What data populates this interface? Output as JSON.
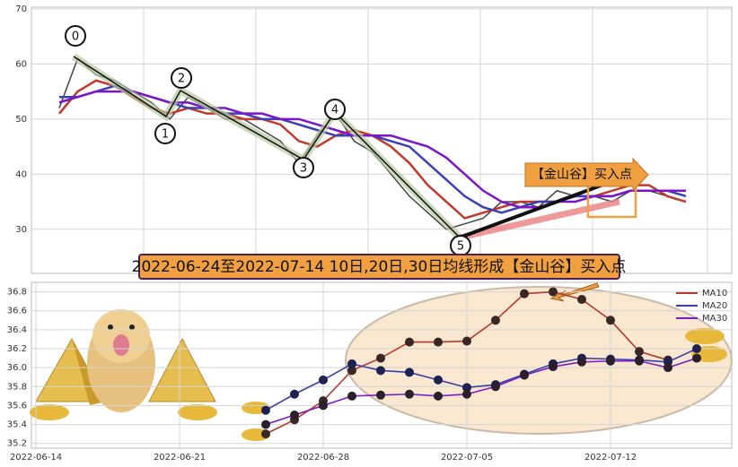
{
  "chart_data": [
    {
      "type": "line",
      "ylim": [
        22,
        70.3
      ],
      "yticks": [
        30,
        40,
        50,
        60,
        70
      ],
      "grid": true,
      "series": [
        {
          "color": "#444444",
          "width": 1.5,
          "values": [
            52,
            61,
            58,
            57,
            55,
            53,
            50,
            54,
            52,
            50,
            50,
            48,
            46,
            42,
            47,
            51,
            46,
            44,
            40,
            36,
            33,
            30,
            31,
            32,
            35,
            35,
            34,
            37,
            36,
            36,
            35,
            37,
            37,
            36,
            35
          ]
        },
        {
          "color": "#c0392b",
          "width": 2.5,
          "values": [
            51,
            55,
            57,
            56,
            54,
            52,
            51,
            52,
            51,
            51,
            50,
            50,
            49,
            46,
            45,
            47,
            48,
            47,
            45,
            42,
            38,
            35,
            32,
            33,
            34,
            35,
            35,
            35,
            36,
            36,
            37,
            38,
            38,
            36,
            35
          ]
        },
        {
          "color": "#3b3fb6",
          "width": 2.5,
          "values": [
            54,
            54,
            55,
            56,
            55,
            54,
            53,
            52,
            52,
            51,
            51,
            50,
            50,
            49,
            48,
            47,
            47,
            47,
            46,
            45,
            42,
            39,
            36,
            34,
            33,
            34,
            35,
            35,
            36,
            36,
            36,
            37,
            37,
            37,
            36
          ]
        },
        {
          "color": "#7b16c8",
          "width": 2.5,
          "values": [
            53,
            54,
            55,
            55,
            55,
            54,
            53,
            53,
            52,
            52,
            51,
            51,
            50,
            50,
            49,
            48,
            47,
            47,
            47,
            46,
            45,
            43,
            40,
            37,
            35,
            34,
            34,
            35,
            35,
            36,
            36,
            37,
            37,
            37,
            37
          ]
        }
      ],
      "wave_labels": [
        "0",
        "1",
        "2",
        "3",
        "4",
        "5"
      ],
      "callout": "【金山谷】买入点",
      "annotation": "2022-06-24至2022-07-14 10日,20日,30日均线形成【金山谷】买入点"
    },
    {
      "type": "line",
      "markers": true,
      "ylim": [
        35.15,
        36.9
      ],
      "yticks": [
        35.2,
        35.4,
        35.6,
        35.8,
        {
          "value": 36,
          "label": "36.0"
        },
        36.2,
        36.4,
        36.6,
        36.8
      ],
      "grid": true,
      "categories": [
        "2022-06-14",
        null,
        null,
        null,
        null,
        "2022-06-21",
        null,
        null,
        null,
        null,
        "2022-06-28",
        null,
        null,
        null,
        null,
        "2022-07-05",
        null,
        null,
        null,
        null,
        "2022-07-12",
        null,
        null,
        null,
        null
      ],
      "legend": "upper right",
      "series": [
        {
          "name": "MA10",
          "color": "#b5392b",
          "marker_color": "#3a2624",
          "values": [
            null,
            null,
            null,
            null,
            null,
            null,
            null,
            null,
            35.3,
            35.45,
            35.65,
            35.97,
            36.1,
            36.27,
            36.27,
            36.28,
            36.5,
            36.78,
            36.8,
            36.72,
            36.5,
            36.17,
            36.08,
            null,
            null
          ]
        },
        {
          "name": "MA20",
          "color": "#3a3fa8",
          "marker_color": "#1f2150",
          "values": [
            null,
            null,
            null,
            null,
            null,
            null,
            null,
            null,
            35.55,
            35.72,
            35.87,
            36.04,
            35.97,
            35.95,
            35.87,
            35.79,
            35.82,
            35.93,
            36.04,
            36.1,
            36.09,
            36.08,
            36.06,
            36.2,
            null
          ]
        },
        {
          "name": "MA30",
          "color": "#7a1fbf",
          "marker_color": "#2b1f2b",
          "values": [
            null,
            null,
            null,
            null,
            null,
            null,
            null,
            null,
            35.4,
            35.5,
            35.6,
            35.7,
            35.71,
            35.72,
            35.7,
            35.72,
            35.8,
            35.92,
            36.01,
            36.06,
            36.07,
            36.07,
            36.0,
            36.1,
            null
          ]
        }
      ]
    }
  ]
}
